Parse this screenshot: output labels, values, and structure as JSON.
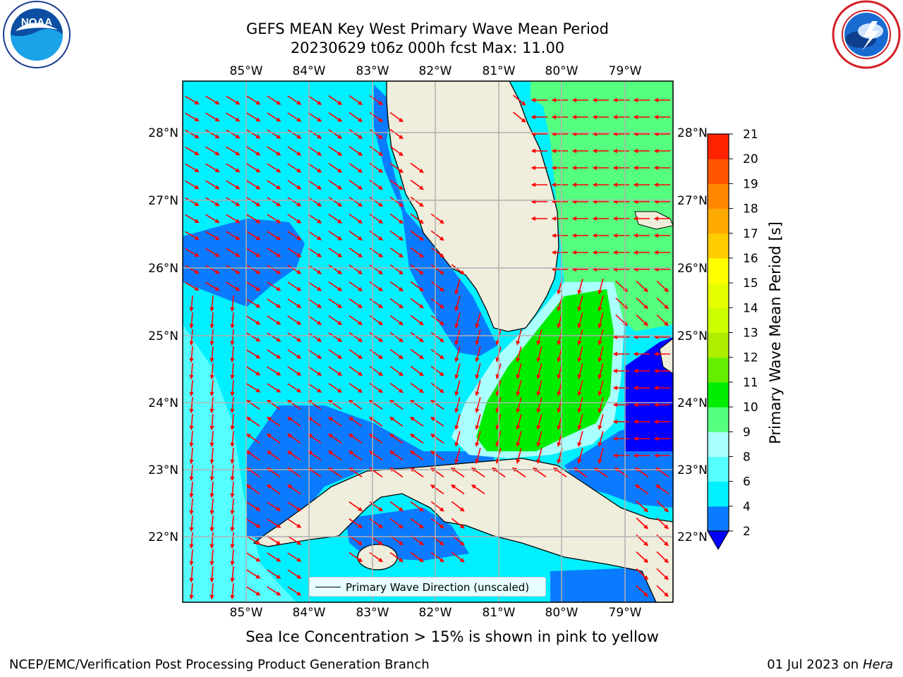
{
  "header": {
    "title_line1": "GEFS MEAN Key West Primary Wave Mean Period",
    "title_line2": "20230629 t06z 000h fcst   Max: 11.00"
  },
  "logos": {
    "left": {
      "name": "NOAA",
      "icon": "noaa-logo"
    },
    "right": {
      "name": "National Weather Service",
      "icon": "nws-logo"
    }
  },
  "map": {
    "longitude_labels": [
      "85°W",
      "84°W",
      "83°W",
      "82°W",
      "81°W",
      "80°W",
      "79°W"
    ],
    "latitude_labels": [
      "28°N",
      "27°N",
      "26°N",
      "25°N",
      "24°N",
      "23°N",
      "22°N"
    ],
    "lon_range": [
      -86.0,
      -78.3
    ],
    "lat_range": [
      21.0,
      28.75
    ],
    "land_color": "#efeddc",
    "ocean_colors": {
      "2-4": "#0a7bff",
      "4-6": "#00f0ff",
      "6-8": "#55ffff",
      "8-9": "#aaffff",
      "9-10": "#55ff80",
      "10-11": "#00ee00",
      "<2": "#0000ff"
    },
    "arrow_color": "#ff0000"
  },
  "legend": {
    "line_label": "Primary Wave Direction (unscaled)"
  },
  "colorbar": {
    "title": "Primary Wave Mean Period [s]",
    "ticks": [
      "2",
      "4",
      "6",
      "8",
      "9",
      "10",
      "11",
      "12",
      "13",
      "14",
      "15",
      "16",
      "17",
      "18",
      "19",
      "20",
      "21"
    ],
    "colors": [
      "#0a7bff",
      "#00f0ff",
      "#55ffff",
      "#aaffff",
      "#55ff80",
      "#00ee00",
      "#66ee00",
      "#b0ee00",
      "#ccff00",
      "#e6ff00",
      "#ffff00",
      "#ffcc00",
      "#ffaa00",
      "#ff8800",
      "#ff5500",
      "#ff2200",
      "#ff0000"
    ],
    "under_color": "#0000ff"
  },
  "subtitle": "Sea Ice Concentration > 15% is shown in pink to yellow",
  "footer": {
    "left": "NCEP/EMC/Verification Post Processing Product Generation Branch",
    "right_prefix": "01 Jul 2023 on ",
    "right_host": "Hera"
  }
}
